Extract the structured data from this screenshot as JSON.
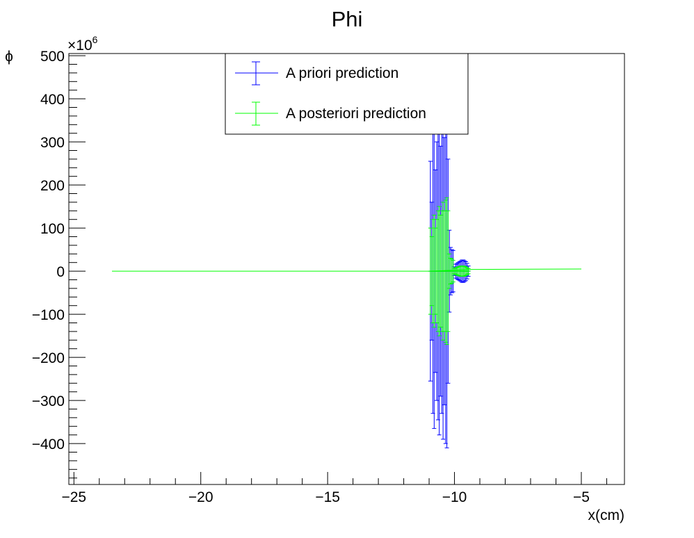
{
  "chart_data": {
    "type": "scatter",
    "title": "Phi",
    "xlabel": "x(cm)",
    "ylabel": "ϕ",
    "y_multiplier": "×10",
    "y_multiplier_exp": "6",
    "xlim": [
      -25.2,
      -3.3
    ],
    "ylim": [
      -495,
      505
    ],
    "x_ticks": [
      -25,
      -20,
      -15,
      -10,
      -5
    ],
    "x_tick_labels": [
      "−25",
      "−20",
      "−15",
      "−10",
      "−5"
    ],
    "y_ticks": [
      -400,
      -300,
      -200,
      -100,
      0,
      100,
      200,
      300,
      400,
      500
    ],
    "y_tick_labels": [
      "−400",
      "−300",
      "−200",
      "−100",
      "0",
      "100",
      "200",
      "300",
      "400",
      "500"
    ],
    "grid": false,
    "legend_position": "top-center",
    "series": [
      {
        "name": "A priori prediction",
        "color": "#0000ff",
        "points": [
          {
            "x": -10.95,
            "y": 0,
            "err": 255
          },
          {
            "x": -10.9,
            "y": 0,
            "err": 160
          },
          {
            "x": -10.85,
            "y": 0,
            "err": 330
          },
          {
            "x": -10.8,
            "y": 0,
            "err": 365
          },
          {
            "x": -10.75,
            "y": 0,
            "err": 235
          },
          {
            "x": -10.7,
            "y": 0,
            "err": 300
          },
          {
            "x": -10.65,
            "y": 0,
            "err": 345
          },
          {
            "x": -10.6,
            "y": 0,
            "err": 380
          },
          {
            "x": -10.55,
            "y": 0,
            "err": 290
          },
          {
            "x": -10.5,
            "y": 0,
            "err": 330
          },
          {
            "x": -10.45,
            "y": 0,
            "err": 390
          },
          {
            "x": -10.4,
            "y": 0,
            "err": 310
          },
          {
            "x": -10.35,
            "y": 0,
            "err": 400
          },
          {
            "x": -10.3,
            "y": 0,
            "err": 410
          },
          {
            "x": -10.25,
            "y": 0,
            "err": 260
          },
          {
            "x": -10.2,
            "y": 0,
            "err": 95
          },
          {
            "x": -10.15,
            "y": 0,
            "err": 55
          },
          {
            "x": -10.1,
            "y": 0,
            "err": 50
          },
          {
            "x": -10.05,
            "y": 0,
            "err": 48
          },
          {
            "x": -10.0,
            "y": 0,
            "err": 10
          },
          {
            "x": -9.95,
            "y": 0,
            "err": 16
          },
          {
            "x": -9.9,
            "y": 0,
            "err": 18
          },
          {
            "x": -9.85,
            "y": 0,
            "err": 20
          },
          {
            "x": -9.8,
            "y": 0,
            "err": 22
          },
          {
            "x": -9.75,
            "y": 0,
            "err": 24
          },
          {
            "x": -9.7,
            "y": 0,
            "err": 26
          },
          {
            "x": -9.65,
            "y": 0,
            "err": 26
          },
          {
            "x": -9.6,
            "y": 0,
            "err": 24
          },
          {
            "x": -9.55,
            "y": 0,
            "err": 22
          },
          {
            "x": -9.5,
            "y": 0,
            "err": 18
          },
          {
            "x": -9.45,
            "y": 0,
            "err": 12
          }
        ]
      },
      {
        "name": "A posteriori prediction",
        "color": "#00ff00",
        "line": [
          [
            -23.5,
            0
          ],
          [
            -11.0,
            0
          ],
          [
            -9.3,
            4
          ],
          [
            -5.0,
            5
          ]
        ],
        "points": [
          {
            "x": -10.95,
            "y": 0,
            "err": 100
          },
          {
            "x": -10.9,
            "y": 0,
            "err": 80
          },
          {
            "x": -10.85,
            "y": 0,
            "err": 120
          },
          {
            "x": -10.8,
            "y": 0,
            "err": 130
          },
          {
            "x": -10.75,
            "y": 0,
            "err": 100
          },
          {
            "x": -10.7,
            "y": 0,
            "err": 120
          },
          {
            "x": -10.65,
            "y": 0,
            "err": 140
          },
          {
            "x": -10.6,
            "y": 0,
            "err": 150
          },
          {
            "x": -10.55,
            "y": 0,
            "err": 130
          },
          {
            "x": -10.5,
            "y": 0,
            "err": 140
          },
          {
            "x": -10.45,
            "y": 0,
            "err": 160
          },
          {
            "x": -10.4,
            "y": 0,
            "err": 140
          },
          {
            "x": -10.35,
            "y": 0,
            "err": 165
          },
          {
            "x": -10.3,
            "y": 0,
            "err": 170
          },
          {
            "x": -10.25,
            "y": 0,
            "err": 140
          },
          {
            "x": -10.2,
            "y": 0,
            "err": 40
          },
          {
            "x": -10.15,
            "y": 0,
            "err": 30
          },
          {
            "x": -10.1,
            "y": 0,
            "err": 28
          },
          {
            "x": -10.05,
            "y": 0,
            "err": 25
          },
          {
            "x": -10.0,
            "y": 0,
            "err": 6
          },
          {
            "x": -9.95,
            "y": 0,
            "err": 8
          },
          {
            "x": -9.9,
            "y": 0,
            "err": 9
          },
          {
            "x": -9.85,
            "y": 0,
            "err": 10
          },
          {
            "x": -9.8,
            "y": 0,
            "err": 11
          },
          {
            "x": -9.75,
            "y": 0,
            "err": 12
          },
          {
            "x": -9.7,
            "y": 0,
            "err": 12
          },
          {
            "x": -9.65,
            "y": 0,
            "err": 12
          },
          {
            "x": -9.6,
            "y": 0,
            "err": 11
          },
          {
            "x": -9.55,
            "y": 0,
            "err": 10
          },
          {
            "x": -9.5,
            "y": 0,
            "err": 8
          },
          {
            "x": -9.45,
            "y": 0,
            "err": 6
          }
        ]
      }
    ]
  }
}
